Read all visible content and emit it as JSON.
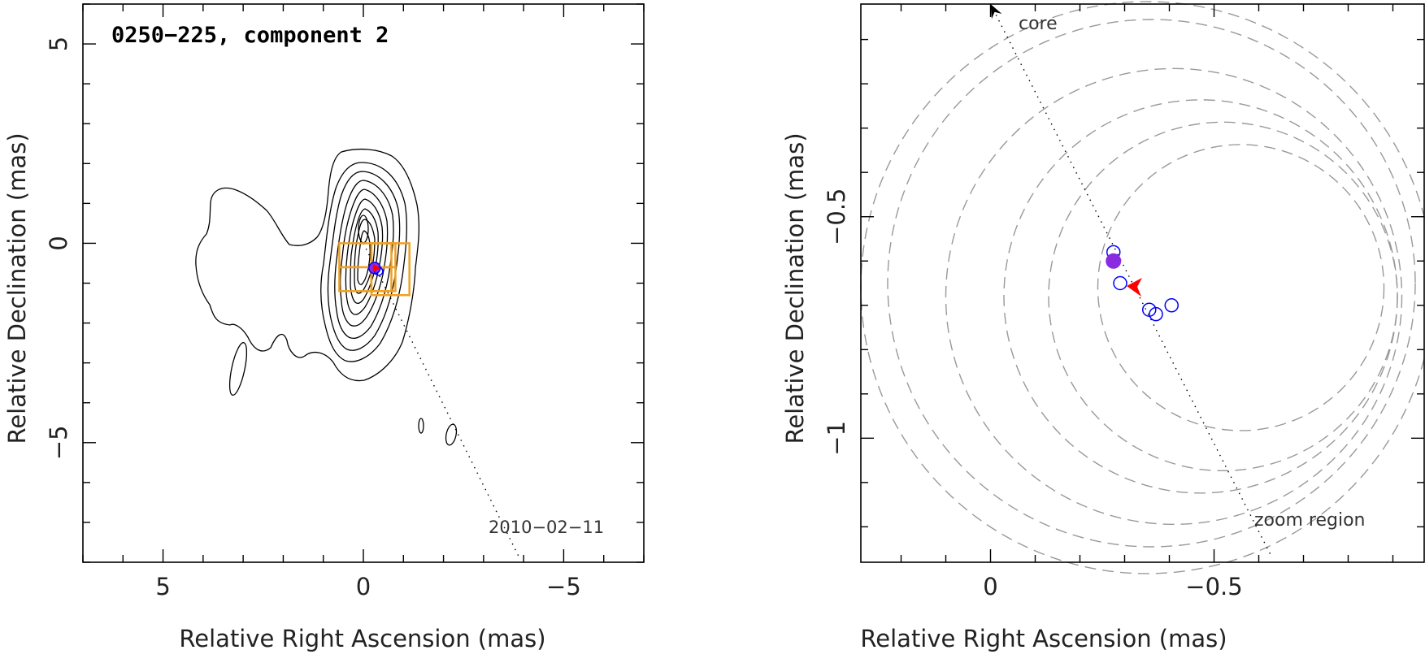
{
  "chart_data": [
    {
      "type": "contour",
      "title": "0250−225, component 2",
      "date_label": "2010−02−11",
      "xlabel": "Relative Right Ascension (mas)",
      "ylabel": "Relative Declination (mas)",
      "xlim": [
        7,
        -7
      ],
      "ylim": [
        -8,
        6
      ],
      "x_tick_labels": [
        {
          "value": 5,
          "label": "5"
        },
        {
          "value": 0,
          "label": "0"
        },
        {
          "value": -5,
          "label": "−5"
        }
      ],
      "y_tick_labels": [
        {
          "value": 5,
          "label": "5"
        },
        {
          "value": 0,
          "label": "0"
        },
        {
          "value": -5,
          "label": "−5"
        }
      ],
      "core_peak": [
        0,
        -0.2
      ],
      "component": {
        "x": -0.28,
        "y": -0.62
      },
      "zoom_boxes": [
        [
          -0.2,
          0.0,
          0.95,
          1.3
        ],
        [
          -0.2,
          0.0,
          0.6,
          0.6
        ],
        [
          0.6,
          0.0,
          1.3,
          0.6
        ],
        [
          -0.2,
          -0.6,
          0.6,
          0.6
        ],
        [
          0.6,
          -0.6,
          1.3,
          0.6
        ]
      ],
      "trajectory": {
        "from": [
          0,
          0
        ],
        "to": [
          -3.9,
          -7.9
        ]
      },
      "colors": {
        "contour": "#000000",
        "box": "#f0a020",
        "component_fill": "#8a2be2",
        "component_edge": "#0000ff",
        "marker": "#ff0000"
      }
    },
    {
      "type": "scatter",
      "xlabel": "Relative Right Ascension (mas)",
      "ylabel": "Relative Declination (mas)",
      "xlim": [
        0.29,
        -0.97
      ],
      "ylim": [
        -1.28,
        -0.02
      ],
      "x_tick_labels": [
        {
          "value": 0,
          "label": "0"
        },
        {
          "value": -0.5,
          "label": "−0.5"
        }
      ],
      "y_tick_labels": [
        {
          "value": -0.5,
          "label": "−0.5"
        },
        {
          "value": -1,
          "label": "−1"
        }
      ],
      "annotations": {
        "core": "core",
        "zoom": "zoom region"
      },
      "filled_points": [
        {
          "x": -0.275,
          "y": -0.6
        }
      ],
      "open_points": [
        {
          "x": -0.275,
          "y": -0.58
        },
        {
          "x": -0.29,
          "y": -0.65
        },
        {
          "x": -0.355,
          "y": -0.71
        },
        {
          "x": -0.37,
          "y": -0.72
        },
        {
          "x": -0.405,
          "y": -0.7
        }
      ],
      "marker": {
        "x": -0.33,
        "y": -0.66
      },
      "trajectory": {
        "from": [
          0.0,
          -0.02
        ],
        "to": [
          -0.63,
          -1.27
        ]
      },
      "error_circles": [
        {
          "cx": -0.56,
          "cy": -0.66,
          "r": 0.32
        },
        {
          "cx": -0.52,
          "cy": -0.68,
          "r": 0.39
        },
        {
          "cx": -0.47,
          "cy": -0.68,
          "r": 0.44
        },
        {
          "cx": -0.41,
          "cy": -0.68,
          "r": 0.51
        },
        {
          "cx": -0.36,
          "cy": -0.65,
          "r": 0.59
        },
        {
          "cx": -0.35,
          "cy": -0.66,
          "r": 0.64
        }
      ],
      "colors": {
        "circle": "#999999",
        "filled": "#8a2be2",
        "open": "#0000ff",
        "marker": "#ff0000",
        "trajectory": "#000000"
      }
    }
  ]
}
